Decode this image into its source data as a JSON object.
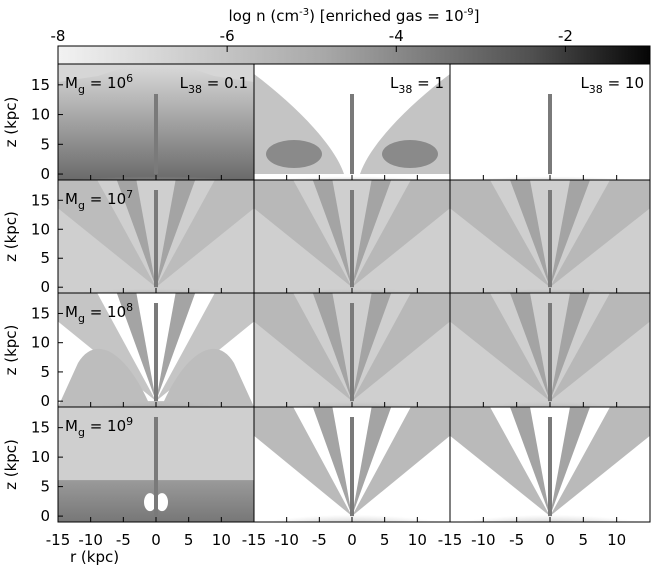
{
  "colorbar": {
    "label_main": "log n (cm",
    "label_exp": "-3",
    "label_mid": ") [enriched gas = 10",
    "label_exp2": "-9",
    "label_end": "]",
    "ticks": [
      "-8",
      "-6",
      "-4",
      "-2"
    ],
    "tick_values": [
      -8,
      -6,
      -4,
      -2
    ],
    "range": [
      -8,
      -1
    ]
  },
  "axes": {
    "ylabel": "z (kpc)",
    "xlabel": "r (kpc)",
    "yticks": [
      "0",
      "5",
      "10",
      "15"
    ],
    "ytick_values": [
      0,
      5,
      10,
      15
    ],
    "xticks": [
      "-15",
      "-10",
      "-5",
      "0",
      "5",
      "10"
    ],
    "xtick_values": [
      -15,
      -10,
      -5,
      0,
      5,
      10
    ],
    "xrange": [
      -15,
      15
    ],
    "yrange": [
      -1,
      18.5
    ]
  },
  "rows": [
    {
      "label_base": "M",
      "label_sub": "g",
      "label_eq": " = 10",
      "label_exp": "6"
    },
    {
      "label_base": "M",
      "label_sub": "g",
      "label_eq": " = 10",
      "label_exp": "7"
    },
    {
      "label_base": "M",
      "label_sub": "g",
      "label_eq": " = 10",
      "label_exp": "8"
    },
    {
      "label_base": "M",
      "label_sub": "g",
      "label_eq": " = 10",
      "label_exp": "9"
    }
  ],
  "columns": [
    {
      "label_base": "L",
      "label_sub": "38",
      "label_val": " = 0.1"
    },
    {
      "label_base": "L",
      "label_sub": "38",
      "label_val": " = 1"
    },
    {
      "label_base": "L",
      "label_sub": "38",
      "label_val": " = 10"
    }
  ],
  "colors": {
    "background": "#ffffff",
    "dense": "#111111",
    "diffuse": "#e4e4e4"
  }
}
